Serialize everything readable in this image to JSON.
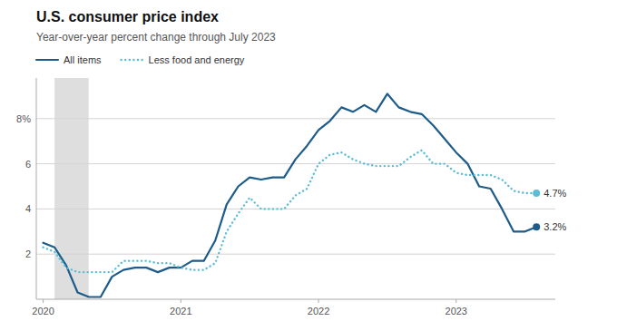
{
  "chart_data": {
    "type": "line",
    "title": "U.S. consumer price index",
    "subtitle": "Year-over-year percent change through July 2023",
    "x": [
      2020.0,
      2020.083,
      2020.167,
      2020.25,
      2020.333,
      2020.417,
      2020.5,
      2020.583,
      2020.667,
      2020.75,
      2020.833,
      2020.917,
      2021.0,
      2021.083,
      2021.167,
      2021.25,
      2021.333,
      2021.417,
      2021.5,
      2021.583,
      2021.667,
      2021.75,
      2021.833,
      2021.917,
      2022.0,
      2022.083,
      2022.167,
      2022.25,
      2022.333,
      2022.417,
      2022.5,
      2022.583,
      2022.667,
      2022.75,
      2022.833,
      2022.917,
      2023.0,
      2023.083,
      2023.167,
      2023.25,
      2023.333,
      2023.417,
      2023.5,
      2023.583
    ],
    "series": [
      {
        "name": "All items",
        "color": "#1d5c8a",
        "line_style": "solid",
        "values": [
          2.5,
          2.3,
          1.5,
          0.3,
          0.1,
          0.1,
          1.0,
          1.3,
          1.4,
          1.4,
          1.2,
          1.4,
          1.4,
          1.7,
          1.7,
          2.6,
          4.2,
          5.0,
          5.4,
          5.3,
          5.4,
          5.4,
          6.2,
          6.8,
          7.5,
          7.9,
          8.5,
          8.3,
          8.6,
          8.3,
          9.1,
          8.5,
          8.3,
          8.2,
          7.7,
          7.1,
          6.5,
          6.0,
          5.0,
          4.9,
          4.0,
          3.0,
          3.0,
          3.2
        ],
        "value_labels": [
          null,
          null,
          null,
          null,
          null,
          null,
          null,
          null,
          null,
          null,
          null,
          null,
          null,
          null,
          null,
          null,
          null,
          null,
          null,
          null,
          null,
          null,
          null,
          null,
          null,
          null,
          null,
          null,
          null,
          null,
          null,
          null,
          null,
          null,
          null,
          null,
          null,
          null,
          null,
          null,
          null,
          null,
          null,
          "3.2%"
        ]
      },
      {
        "name": "Less food and energy",
        "color": "#5bbcd6",
        "line_style": "dotted",
        "values": [
          2.3,
          2.1,
          1.4,
          1.2,
          1.2,
          1.2,
          1.2,
          1.7,
          1.7,
          1.7,
          1.6,
          1.6,
          1.4,
          1.3,
          1.3,
          1.6,
          3.0,
          3.8,
          4.5,
          4.0,
          4.0,
          4.0,
          4.6,
          4.9,
          6.0,
          6.4,
          6.5,
          6.2,
          6.0,
          5.9,
          5.9,
          5.9,
          6.3,
          6.6,
          6.0,
          6.0,
          5.6,
          5.5,
          5.5,
          5.5,
          5.3,
          4.8,
          4.7,
          4.7
        ],
        "value_labels": [
          null,
          null,
          null,
          null,
          null,
          null,
          null,
          null,
          null,
          null,
          null,
          null,
          null,
          null,
          null,
          null,
          null,
          null,
          null,
          null,
          null,
          null,
          null,
          null,
          null,
          null,
          null,
          null,
          null,
          null,
          null,
          null,
          null,
          null,
          null,
          null,
          null,
          null,
          null,
          null,
          null,
          null,
          null,
          "4.7%"
        ]
      }
    ],
    "recession_shade": [
      2020.083,
      2020.33
    ],
    "xlim": [
      2019.95,
      2023.72
    ],
    "xticks": [
      2020,
      2021,
      2022,
      2023
    ],
    "ylim": [
      0,
      9.8
    ],
    "yticks": [
      2,
      4,
      6,
      {
        "value": 8,
        "label": "8%"
      }
    ],
    "grid": true,
    "legend": "top-left"
  }
}
